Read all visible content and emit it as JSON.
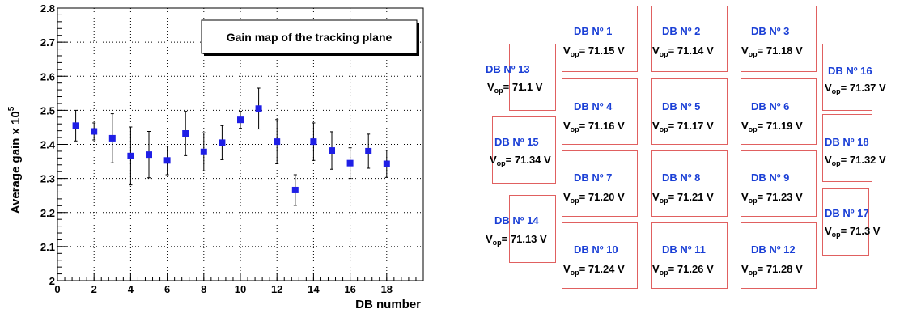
{
  "chart_data": {
    "type": "scatter",
    "title": "Gain map of the tracking plane",
    "xlabel": "DB number",
    "ylabel_main": "Average gain x 10",
    "ylabel_exp": "5",
    "xlim": [
      0,
      20
    ],
    "ylim": [
      2.0,
      2.8
    ],
    "xticks": [
      "0",
      "2",
      "4",
      "6",
      "8",
      "10",
      "12",
      "14",
      "16",
      "18"
    ],
    "yticks": [
      "2",
      "2.1",
      "2.2",
      "2.3",
      "2.4",
      "2.5",
      "2.6",
      "2.7",
      "2.8"
    ],
    "grid": true,
    "marker_color": "#1f1fe6",
    "points": [
      {
        "x": 1,
        "y": 2.455,
        "err": 0.045
      },
      {
        "x": 2,
        "y": 2.438,
        "err": 0.025
      },
      {
        "x": 3,
        "y": 2.418,
        "err": 0.072
      },
      {
        "x": 4,
        "y": 2.366,
        "err": 0.085
      },
      {
        "x": 5,
        "y": 2.37,
        "err": 0.068
      },
      {
        "x": 6,
        "y": 2.353,
        "err": 0.042
      },
      {
        "x": 7,
        "y": 2.432,
        "err": 0.065
      },
      {
        "x": 8,
        "y": 2.378,
        "err": 0.056
      },
      {
        "x": 9,
        "y": 2.405,
        "err": 0.05
      },
      {
        "x": 10,
        "y": 2.472,
        "err": 0.025
      },
      {
        "x": 11,
        "y": 2.505,
        "err": 0.06
      },
      {
        "x": 12,
        "y": 2.408,
        "err": 0.065
      },
      {
        "x": 13,
        "y": 2.266,
        "err": 0.045
      },
      {
        "x": 14,
        "y": 2.408,
        "err": 0.055
      },
      {
        "x": 15,
        "y": 2.382,
        "err": 0.055
      },
      {
        "x": 16,
        "y": 2.345,
        "err": 0.045
      },
      {
        "x": 17,
        "y": 2.38,
        "err": 0.05
      },
      {
        "x": 18,
        "y": 2.343,
        "err": 0.04
      }
    ]
  },
  "gain_map": {
    "box_color": "#e06060",
    "label_color": "#1a3fd6",
    "boards": [
      {
        "id": "db-1",
        "label": "DB  Nº 1",
        "vop": "V",
        "sub": "op",
        "value": "= 71.15 V"
      },
      {
        "id": "db-2",
        "label": "DB  Nº 2",
        "vop": "V",
        "sub": "op",
        "value": "= 71.14 V"
      },
      {
        "id": "db-3",
        "label": "DB  Nº 3",
        "vop": "V",
        "sub": "op",
        "value": "= 71.18 V"
      },
      {
        "id": "db-4",
        "label": "DB  Nº 4",
        "vop": "V",
        "sub": "op",
        "value": "= 71.16 V"
      },
      {
        "id": "db-5",
        "label": "DB  Nº 5",
        "vop": "V",
        "sub": "op",
        "value": "= 71.17 V"
      },
      {
        "id": "db-6",
        "label": "DB  Nº 6",
        "vop": "V",
        "sub": "op",
        "value": "= 71.19 V"
      },
      {
        "id": "db-7",
        "label": "DB  Nº 7",
        "vop": "V",
        "sub": "op",
        "value": "= 71.20 V"
      },
      {
        "id": "db-8",
        "label": "DB  Nº 8",
        "vop": "V",
        "sub": "op",
        "value": "= 71.21 V"
      },
      {
        "id": "db-9",
        "label": "DB  Nº 9",
        "vop": "V",
        "sub": "op",
        "value": "= 71.23 V"
      },
      {
        "id": "db-10",
        "label": "DB  Nº 10",
        "vop": "V",
        "sub": "op",
        "value": "= 71.24 V"
      },
      {
        "id": "db-11",
        "label": "DB  Nº 11",
        "vop": "V",
        "sub": "op",
        "value": "= 71.26 V"
      },
      {
        "id": "db-12",
        "label": "DB  Nº 12",
        "vop": "V",
        "sub": "op",
        "value": "= 71.28 V"
      },
      {
        "id": "db-13",
        "label": "DB  Nº 13",
        "vop": "V",
        "sub": "op",
        "value": "= 71.1 V"
      },
      {
        "id": "db-14",
        "label": "DB  Nº 14",
        "vop": "V",
        "sub": "op",
        "value": "= 71.13 V"
      },
      {
        "id": "db-15",
        "label": "DB  Nº 15",
        "vop": "V",
        "sub": "op",
        "value": "= 71.34 V"
      },
      {
        "id": "db-16",
        "label": "DB  Nº 16",
        "vop": "V",
        "sub": "op",
        "value": "= 71.37 V"
      },
      {
        "id": "db-17",
        "label": "DB  Nº 17",
        "vop": "V",
        "sub": "op",
        "value": "= 71.3 V"
      },
      {
        "id": "db-18",
        "label": "DB  Nº 18",
        "vop": "V",
        "sub": "op",
        "value": "= 71.32 V"
      }
    ]
  }
}
